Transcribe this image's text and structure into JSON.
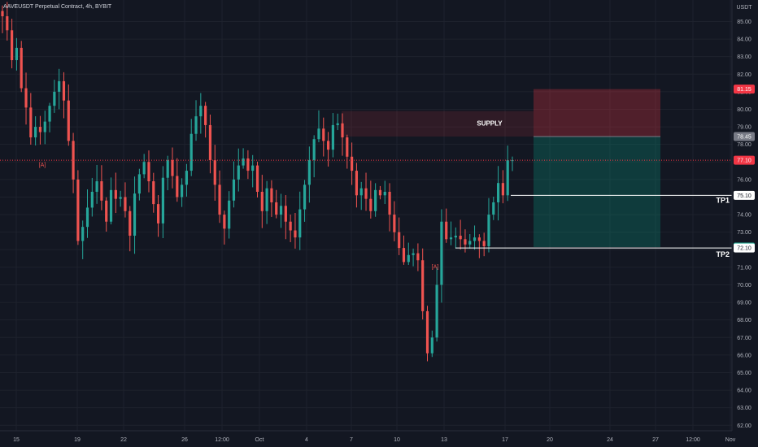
{
  "header": {
    "symbol_title": "AAVEUSDT Perpetual Contract, 4h, BYBIT"
  },
  "price_axis": {
    "currency": "USDT",
    "ticks": [
      "85.00",
      "84.00",
      "83.00",
      "82.00",
      "81.00",
      "80.00",
      "79.00",
      "78.00",
      "77.00",
      "76.00",
      "75.00",
      "74.00",
      "73.00",
      "72.00",
      "71.00",
      "70.00",
      "69.00",
      "68.00",
      "67.00",
      "66.00",
      "65.00",
      "64.00",
      "63.00",
      "62.00"
    ],
    "badges": [
      {
        "label": "81.15",
        "color": "#f23645",
        "text_color": "#ffffff"
      },
      {
        "label": "78.45",
        "color": "#787b86",
        "text_color": "#ffffff"
      },
      {
        "label": "77.10",
        "color": "#f23645",
        "text_color": "#ffffff"
      },
      {
        "label": "75.10",
        "color": "#ffffff",
        "text_color": "#131722"
      },
      {
        "label": "72.15",
        "color": "#22ab94",
        "text_color": "#ffffff"
      },
      {
        "label": "72.10",
        "color": "#ffffff",
        "text_color": "#131722"
      }
    ]
  },
  "time_axis": {
    "ticks": [
      "15",
      "19",
      "22",
      "26",
      "12:00",
      "Oct",
      "4",
      "7",
      "10",
      "13",
      "17",
      "20",
      "24",
      "27",
      "12:00",
      "Nov"
    ]
  },
  "annotations": {
    "supply_label": "SUPPLY",
    "tp1_label": "TP1",
    "tp2_label": "TP2",
    "marker_a1": "[A]",
    "marker_a2": "[A]"
  },
  "position_tool": {
    "stop_price": 81.15,
    "entry_price": 78.45,
    "target_price": 72.15
  },
  "colors": {
    "background": "#131722",
    "up": "#26a69a",
    "down": "#ef5350",
    "grid": "#1e222d",
    "axis_text": "#b2b5be"
  },
  "chart_data": {
    "type": "candlestick",
    "timeframe": "4h",
    "y_range": [
      61.6,
      85.8
    ],
    "last_price": 77.1,
    "closes_approx": [
      85.3,
      84.5,
      82.8,
      83.5,
      81.2,
      80.1,
      78.4,
      79.0,
      78.7,
      79.3,
      80.2,
      81.0,
      81.6,
      80.5,
      78.2,
      76.0,
      72.5,
      73.3,
      74.4,
      75.3,
      75.9,
      74.8,
      73.6,
      75.4,
      74.9,
      75.0,
      74.2,
      72.8,
      75.2,
      76.3,
      77.0,
      75.9,
      74.6,
      73.5,
      76.1,
      77.1,
      76.2,
      75.0,
      75.7,
      76.5,
      78.6,
      79.6,
      80.2,
      79.1,
      77.1,
      75.7,
      74.0,
      73.2,
      74.8,
      76.0,
      76.8,
      77.2,
      76.5,
      76.8,
      75.3,
      74.2,
      75.5,
      74.7,
      74.0,
      74.5,
      73.6,
      73.1,
      72.7,
      74.3,
      75.7,
      77.1,
      78.3,
      78.9,
      78.2,
      77.7,
      79.1,
      79.2,
      78.4,
      77.3,
      76.5,
      75.1,
      75.5,
      74.9,
      74.2,
      75.4,
      75.1,
      75.3,
      74.0,
      73.0,
      72.1,
      71.3,
      71.7,
      71.8,
      71.4,
      68.5,
      66.1,
      67.0,
      70.0,
      73.6,
      72.6,
      72.7,
      72.8,
      72.6,
      72.3,
      72.5,
      72.7,
      72.5,
      72.2,
      74.0,
      74.7,
      75.8,
      75.1,
      77.1,
      77.1
    ]
  }
}
